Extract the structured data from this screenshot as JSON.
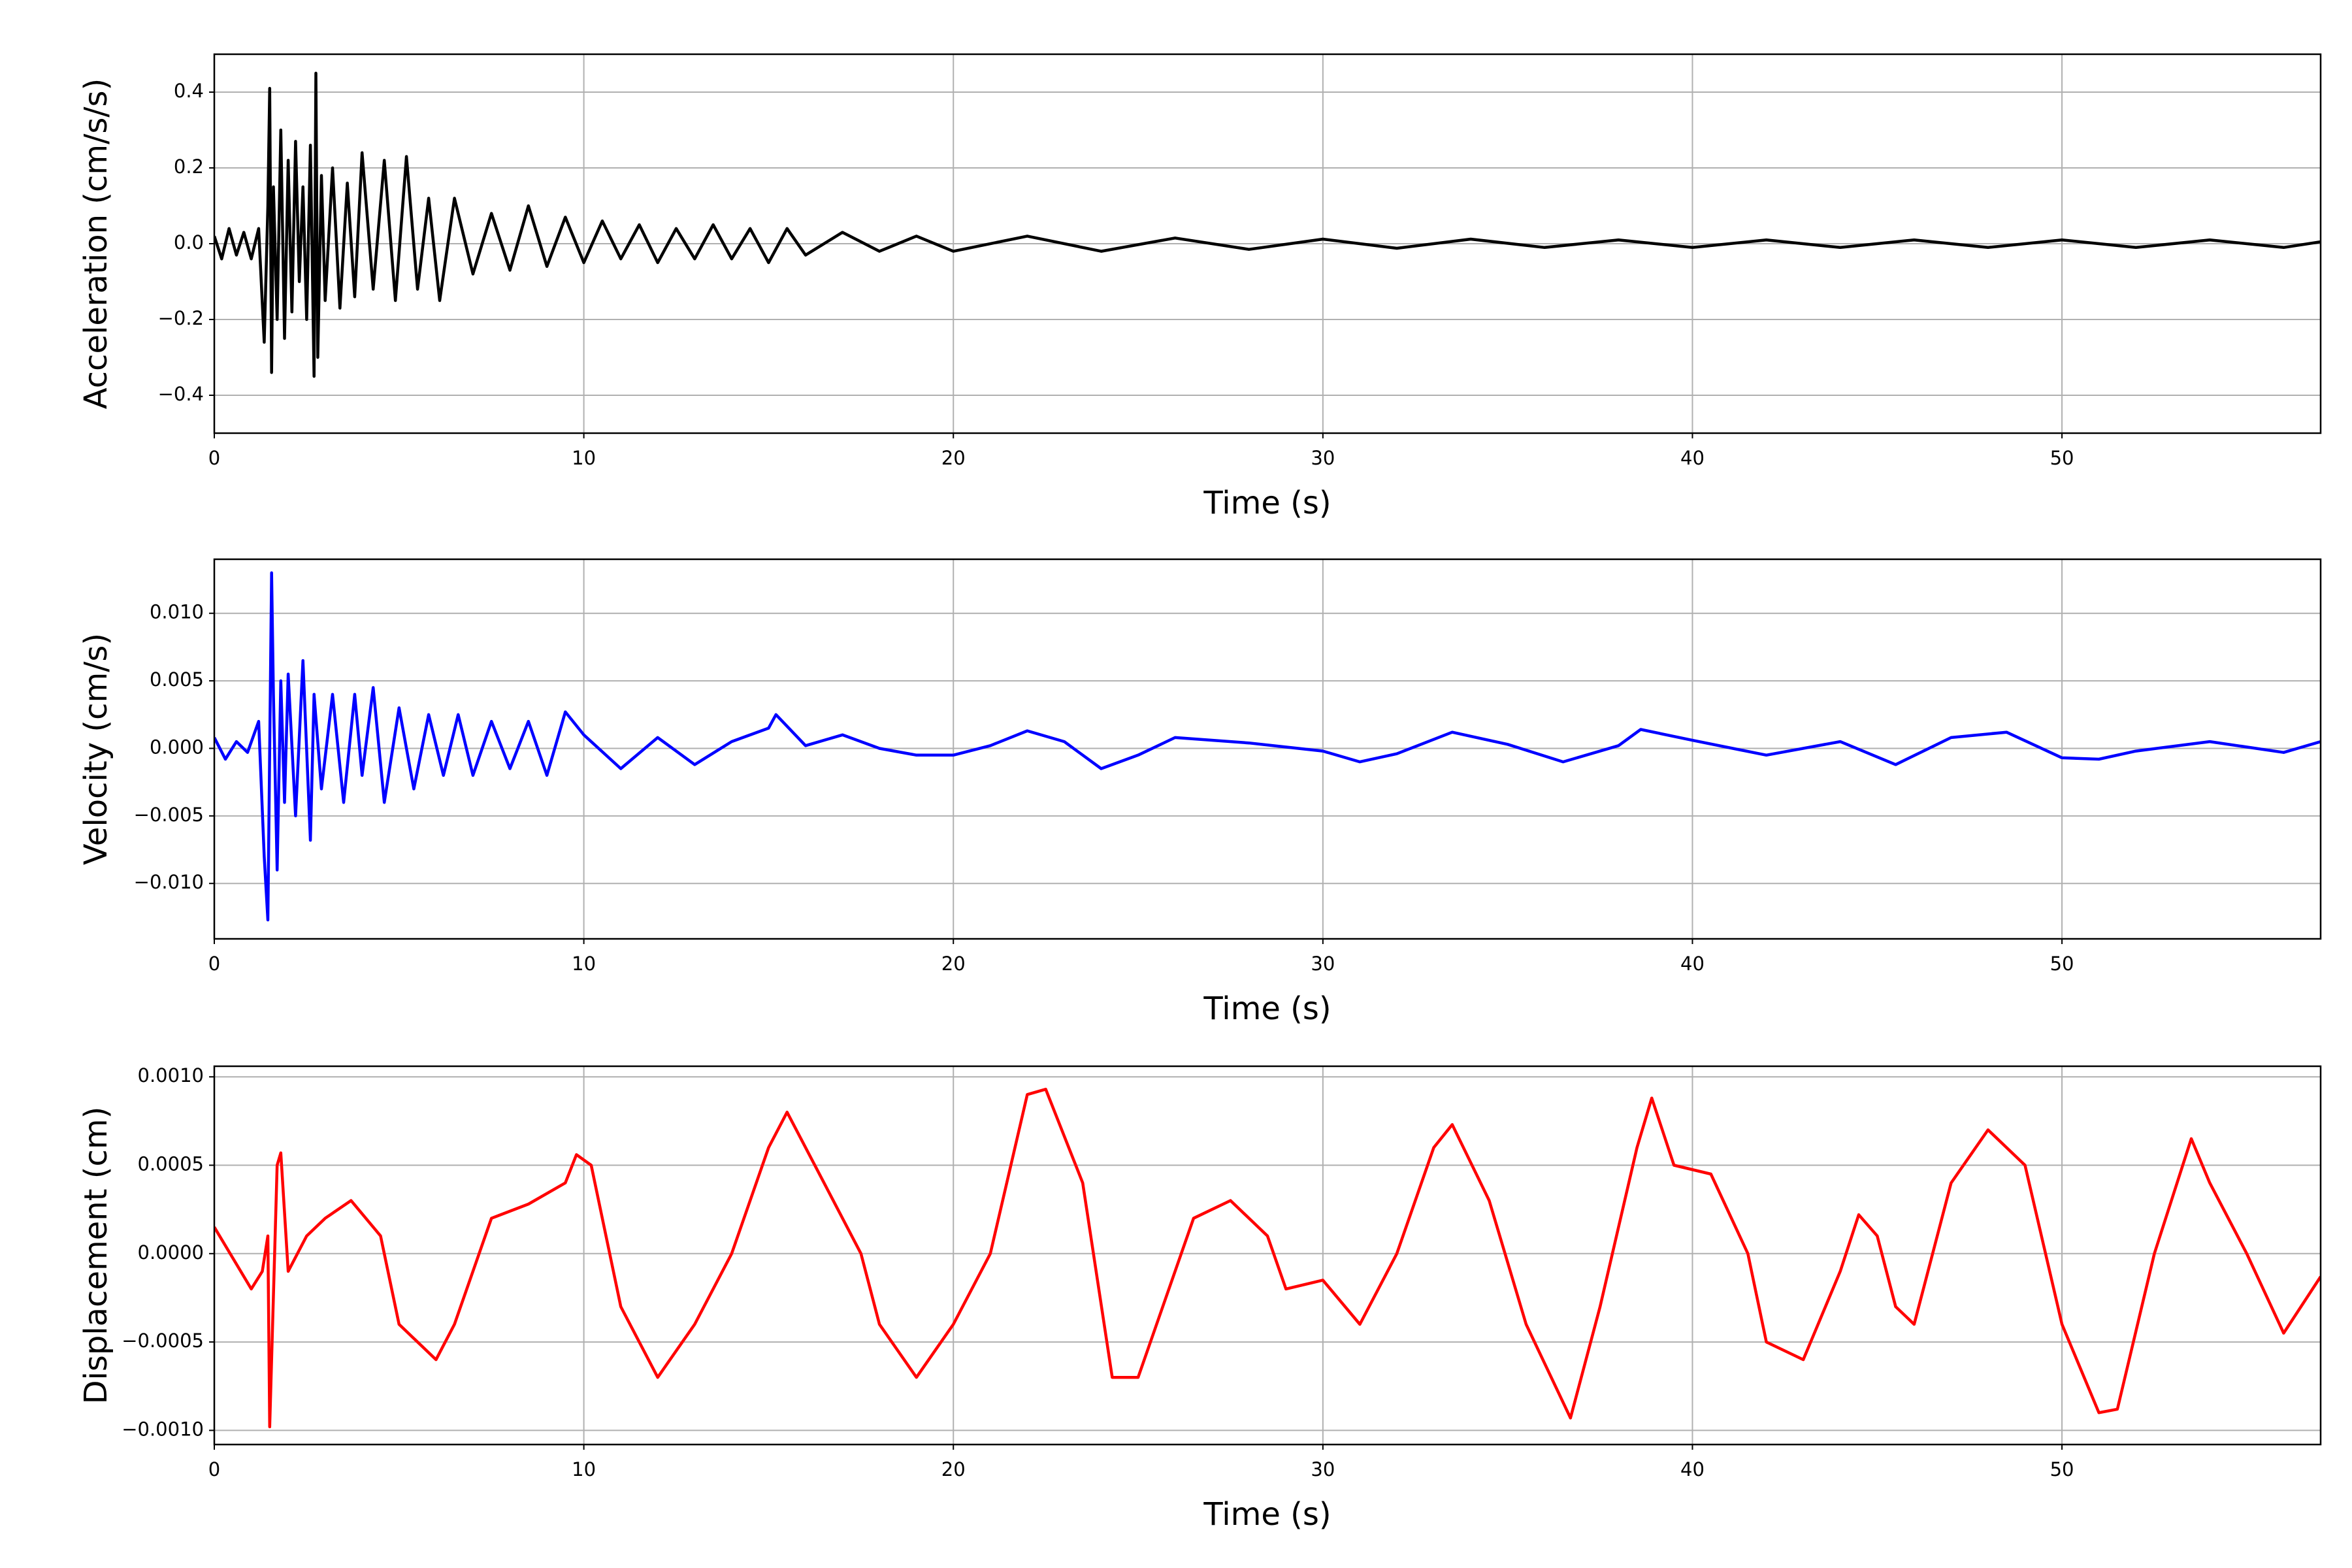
{
  "chart_data": [
    {
      "type": "line",
      "xlabel": "Time (s)",
      "ylabel": "Acceleration (cm/s/s)",
      "color": "#000000",
      "grid": true,
      "xlim": [
        0,
        57
      ],
      "xticks": [
        0,
        10,
        20,
        30,
        40,
        50
      ],
      "ylim": [
        -0.5,
        0.5
      ],
      "yticks": [
        {
          "value": -0.4,
          "label": "−0.4"
        },
        {
          "value": -0.2,
          "label": "−0.2"
        },
        {
          "value": 0,
          "label": "0.0"
        },
        0.2,
        0.4
      ],
      "x": [
        0,
        0.2,
        0.4,
        0.6,
        0.8,
        1.0,
        1.2,
        1.35,
        1.45,
        1.5,
        1.55,
        1.6,
        1.7,
        1.8,
        1.9,
        2.0,
        2.1,
        2.2,
        2.3,
        2.4,
        2.5,
        2.6,
        2.7,
        2.75,
        2.8,
        2.9,
        3.0,
        3.2,
        3.4,
        3.6,
        3.8,
        4.0,
        4.3,
        4.6,
        4.9,
        5.2,
        5.5,
        5.8,
        6.1,
        6.5,
        7.0,
        7.5,
        8.0,
        8.5,
        9.0,
        9.5,
        10.0,
        10.5,
        11.0,
        11.5,
        12.0,
        12.5,
        13.0,
        13.5,
        14.0,
        14.5,
        15.0,
        15.5,
        16.0,
        17.0,
        18.0,
        19.0,
        20.0,
        22.0,
        24.0,
        26.0,
        28.0,
        30.0,
        32.0,
        34.0,
        36.0,
        38.0,
        40.0,
        42.0,
        44.0,
        46.0,
        48.0,
        50.0,
        52.0,
        54.0,
        56.0,
        57.0
      ],
      "values": [
        0.02,
        -0.04,
        0.04,
        -0.03,
        0.03,
        -0.04,
        0.04,
        -0.26,
        0.1,
        0.41,
        -0.34,
        0.15,
        -0.2,
        0.3,
        -0.25,
        0.22,
        -0.18,
        0.27,
        -0.1,
        0.15,
        -0.2,
        0.26,
        -0.35,
        0.45,
        -0.3,
        0.18,
        -0.15,
        0.2,
        -0.17,
        0.16,
        -0.14,
        0.24,
        -0.12,
        0.22,
        -0.15,
        0.23,
        -0.12,
        0.12,
        -0.15,
        0.12,
        -0.08,
        0.08,
        -0.07,
        0.1,
        -0.06,
        0.07,
        -0.05,
        0.06,
        -0.04,
        0.05,
        -0.05,
        0.04,
        -0.04,
        0.05,
        -0.04,
        0.04,
        -0.05,
        0.04,
        -0.03,
        0.03,
        -0.02,
        0.02,
        -0.02,
        0.02,
        -0.02,
        0.015,
        -0.015,
        0.012,
        -0.012,
        0.012,
        -0.01,
        0.01,
        -0.01,
        0.01,
        -0.01,
        0.01,
        -0.01,
        0.01,
        -0.01,
        0.01,
        -0.01,
        0.005
      ]
    },
    {
      "type": "line",
      "xlabel": "Time (s)",
      "ylabel": "Velocity (cm/s)",
      "color": "#0000ff",
      "grid": true,
      "xlim": [
        0,
        57
      ],
      "xticks": [
        0,
        10,
        20,
        30,
        40,
        50
      ],
      "ylim": [
        -0.0141,
        0.014
      ],
      "yticks": [
        {
          "value": -0.01,
          "label": "−0.010"
        },
        {
          "value": -0.005,
          "label": "−0.005"
        },
        {
          "value": 0,
          "label": "0.000"
        },
        {
          "value": 0.005,
          "label": "0.005"
        },
        {
          "value": 0.01,
          "label": "0.010"
        }
      ],
      "x": [
        0,
        0.3,
        0.6,
        0.9,
        1.2,
        1.35,
        1.45,
        1.55,
        1.6,
        1.7,
        1.8,
        1.9,
        2.0,
        2.2,
        2.4,
        2.6,
        2.7,
        2.9,
        3.2,
        3.5,
        3.8,
        4.0,
        4.3,
        4.6,
        5.0,
        5.4,
        5.8,
        6.2,
        6.6,
        7.0,
        7.5,
        8.0,
        8.5,
        9.0,
        9.5,
        10.0,
        11.0,
        12.0,
        13.0,
        14.0,
        15.0,
        15.2,
        16.0,
        17.0,
        18.0,
        19.0,
        20.0,
        21.0,
        22.0,
        23.0,
        24.0,
        25.0,
        26.0,
        28.0,
        30.0,
        31.0,
        32.0,
        33.5,
        35.0,
        36.5,
        38.0,
        38.6,
        40.0,
        42.0,
        44.0,
        45.5,
        47.0,
        48.5,
        50.0,
        51.0,
        52.0,
        54.0,
        56.0,
        57.0
      ],
      "values": [
        0.0008,
        -0.0008,
        0.0005,
        -0.0003,
        0.002,
        -0.008,
        -0.0127,
        0.013,
        0.004,
        -0.009,
        0.005,
        -0.004,
        0.0055,
        -0.005,
        0.0065,
        -0.0068,
        0.004,
        -0.003,
        0.004,
        -0.004,
        0.004,
        -0.002,
        0.0045,
        -0.004,
        0.003,
        -0.003,
        0.0025,
        -0.002,
        0.0025,
        -0.002,
        0.002,
        -0.0015,
        0.002,
        -0.002,
        0.0027,
        0.001,
        -0.0015,
        0.0008,
        -0.0012,
        0.0005,
        0.0015,
        0.0025,
        0.0002,
        0.001,
        0.0,
        -0.0005,
        -0.0005,
        0.0002,
        0.0013,
        0.0005,
        -0.0015,
        -0.0005,
        0.0008,
        0.0004,
        -0.0002,
        -0.001,
        -0.0004,
        0.0012,
        0.0003,
        -0.001,
        0.0002,
        0.0014,
        0.0006,
        -0.0005,
        0.0005,
        -0.0012,
        0.0008,
        0.0012,
        -0.0007,
        -0.0008,
        -0.0002,
        0.0005,
        -0.0003,
        0.0005
      ]
    },
    {
      "type": "line",
      "xlabel": "Time (s)",
      "ylabel": "Displacement (cm)",
      "color": "#ff0000",
      "grid": true,
      "xlim": [
        0,
        57
      ],
      "xticks": [
        0,
        10,
        20,
        30,
        40,
        50
      ],
      "ylim": [
        -0.00108,
        0.00106
      ],
      "yticks": [
        {
          "value": -0.001,
          "label": "−0.0010"
        },
        {
          "value": -0.0005,
          "label": "−0.0005"
        },
        {
          "value": 0,
          "label": "0.0000"
        },
        {
          "value": 0.0005,
          "label": "0.0005"
        },
        {
          "value": 0.001,
          "label": "0.0010"
        }
      ],
      "x": [
        0,
        1,
        1.3,
        1.45,
        1.5,
        1.7,
        1.8,
        2,
        2.5,
        3,
        3.7,
        4.5,
        5,
        6,
        6.5,
        7,
        7.5,
        8.5,
        9.5,
        9.8,
        10.2,
        11,
        12,
        13,
        14,
        15,
        15.5,
        16.5,
        17.5,
        18,
        19,
        20,
        21,
        22,
        22.5,
        23.5,
        24.3,
        25,
        26,
        26.5,
        27.5,
        28.5,
        29,
        30,
        31,
        32,
        33,
        33.5,
        34.5,
        35.5,
        36.7,
        37.5,
        38.5,
        38.9,
        39.5,
        40.5,
        41.5,
        42,
        43,
        44,
        44.5,
        45,
        45.5,
        46,
        47,
        48,
        49,
        50,
        51,
        51.5,
        52.5,
        53.5,
        54,
        55,
        56,
        57
      ],
      "values": [
        0.00015,
        -0.0002,
        -0.0001,
        0.0001,
        -0.00098,
        0.0005,
        0.00057,
        -0.0001,
        0.0001,
        0.0002,
        0.0003,
        0.0001,
        -0.0004,
        -0.0006,
        -0.0004,
        -0.0001,
        0.0002,
        0.00028,
        0.0004,
        0.00056,
        0.0005,
        -0.0003,
        -0.0007,
        -0.0004,
        0.0,
        0.0006,
        0.0008,
        0.0004,
        0.0,
        -0.0004,
        -0.0007,
        -0.0004,
        0.0,
        0.0009,
        0.00093,
        0.0004,
        -0.0007,
        -0.0007,
        -0.0001,
        0.0002,
        0.0003,
        0.0001,
        -0.0002,
        -0.00015,
        -0.0004,
        0.0,
        0.0006,
        0.00073,
        0.0003,
        -0.0004,
        -0.00093,
        -0.0003,
        0.0006,
        0.00088,
        0.0005,
        0.00045,
        0.0,
        -0.0005,
        -0.0006,
        -0.0001,
        0.00022,
        0.0001,
        -0.0003,
        -0.0004,
        0.0004,
        0.0007,
        0.0005,
        -0.0004,
        -0.0009,
        -0.00088,
        0.0,
        0.00065,
        0.0004,
        0.0,
        -0.00045,
        -0.00013
      ]
    }
  ]
}
